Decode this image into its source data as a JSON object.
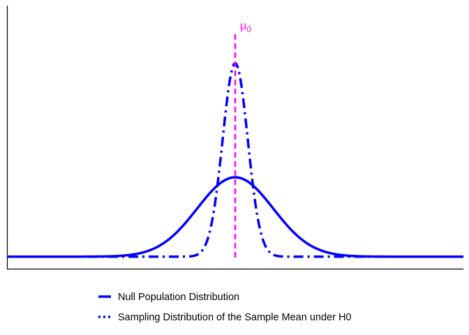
{
  "chart_data": {
    "type": "line",
    "title": "",
    "xlabel": "",
    "ylabel": "",
    "axes": {
      "x_ticks": "none",
      "y_ticks": "none",
      "grid": false
    },
    "xlim": [
      -6,
      6
    ],
    "ylim": [
      -0.06,
      1.25
    ],
    "series": [
      {
        "name": "Null Population Distribution",
        "line_style": "solid",
        "color": "#0000ff",
        "mean": 0,
        "sd": 1,
        "scale": 0.395
      },
      {
        "name": "Sampling Distribution of the Sample Mean under H0",
        "line_style": "dot-dash",
        "color": "#0000ff",
        "mean": 0,
        "sd": 0.33,
        "scale": 0.963
      }
    ],
    "reference_line": {
      "x": 0,
      "style": "dashed",
      "color": "#ff00ff",
      "label": "μ",
      "label_subscript": "0"
    },
    "legend": {
      "position": "bottom",
      "entries": [
        "Null Population Distribution",
        "Sampling Distribution of the Sample Mean under H0"
      ]
    }
  }
}
